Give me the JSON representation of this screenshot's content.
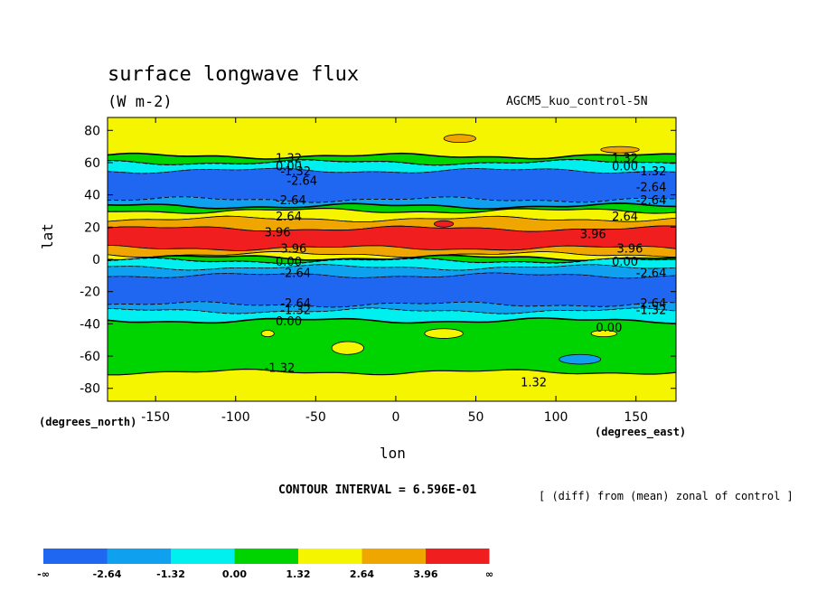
{
  "chart_data": {
    "type": "heatmap",
    "title": "surface longwave flux",
    "units": "(W m-2)",
    "run_name": "AGCM5_kuo_control-5N",
    "xlabel": "lon",
    "ylabel": "lat",
    "x_units_label": "(degrees_east)",
    "y_units_label": "(degrees_north)",
    "xlim": [
      -180,
      175
    ],
    "ylim": [
      -88,
      88
    ],
    "x_ticks": [
      -150,
      -100,
      -50,
      0,
      50,
      100,
      150
    ],
    "y_ticks": [
      -80,
      -60,
      -40,
      -20,
      0,
      20,
      40,
      60,
      80
    ],
    "x_tick_labels": [
      "-150",
      "-100",
      "-50",
      "0",
      "50",
      "100",
      "150"
    ],
    "y_tick_labels": [
      "-80",
      "-60",
      "-40",
      "-20",
      "0",
      "20",
      "40",
      "60",
      "80"
    ],
    "contour_interval_text": "CONTOUR INTERVAL = 6.596E-01",
    "description_text": "[ (diff) from (mean) zonal of control ]",
    "colorbar": {
      "labels": [
        "-∞",
        "-2.64",
        "-1.32",
        "0.00",
        "1.32",
        "2.64",
        "3.96",
        "∞"
      ],
      "colors": [
        "#1f66f0",
        "#10a0f0",
        "#00f0f0",
        "#00d400",
        "#f5f500",
        "#f0a600",
        "#f01e1e"
      ]
    },
    "zonal_bands": [
      {
        "lat_from": 88,
        "lat_to": 64,
        "value": 1.32,
        "color": "#f5f500"
      },
      {
        "lat_from": 64,
        "lat_to": 60,
        "value": 0.0,
        "color": "#00d400"
      },
      {
        "lat_from": 60,
        "lat_to": 55,
        "value": -1.32,
        "color": "#00f0f0"
      },
      {
        "lat_from": 55,
        "lat_to": 37,
        "value": -2.64,
        "color": "#1f66f0"
      },
      {
        "lat_from": 37,
        "lat_to": 33,
        "value": -1.32,
        "color": "#10a0f0"
      },
      {
        "lat_from": 33,
        "lat_to": 30,
        "value": 0.0,
        "color": "#00d400"
      },
      {
        "lat_from": 30,
        "lat_to": 25,
        "value": 1.32,
        "color": "#f5f500"
      },
      {
        "lat_from": 25,
        "lat_to": 19,
        "value": 2.64,
        "color": "#f0a600"
      },
      {
        "lat_from": 19,
        "lat_to": 7,
        "value": 3.96,
        "color": "#f01e1e"
      },
      {
        "lat_from": 7,
        "lat_to": 3,
        "value": 2.64,
        "color": "#f0a600"
      },
      {
        "lat_from": 3,
        "lat_to": 1,
        "value": 1.32,
        "color": "#f5f500"
      },
      {
        "lat_from": 1,
        "lat_to": -1,
        "value": 0.0,
        "color": "#00d400"
      },
      {
        "lat_from": -1,
        "lat_to": -5,
        "value": -1.32,
        "color": "#00f0f0"
      },
      {
        "lat_from": -5,
        "lat_to": -10,
        "value": -1.32,
        "color": "#10a0f0"
      },
      {
        "lat_from": -10,
        "lat_to": -28,
        "value": -2.64,
        "color": "#1f66f0"
      },
      {
        "lat_from": -28,
        "lat_to": -32,
        "value": -1.32,
        "color": "#10a0f0"
      },
      {
        "lat_from": -32,
        "lat_to": -38,
        "value": -1.32,
        "color": "#00f0f0"
      },
      {
        "lat_from": -38,
        "lat_to": -70,
        "value": 0.0,
        "color": "#00d400"
      },
      {
        "lat_from": -70,
        "lat_to": -88,
        "value": 1.32,
        "color": "#f5f500"
      }
    ],
    "patches": [
      {
        "lon": -80,
        "lat": -46,
        "rx": 4,
        "ry": 2,
        "color": "#f5f500"
      },
      {
        "lon": -30,
        "lat": -55,
        "rx": 10,
        "ry": 4,
        "color": "#f5f500"
      },
      {
        "lon": 30,
        "lat": -46,
        "rx": 12,
        "ry": 3,
        "color": "#f5f500"
      },
      {
        "lon": 130,
        "lat": -46,
        "rx": 8,
        "ry": 2,
        "color": "#f5f500"
      },
      {
        "lon": 115,
        "lat": -62,
        "rx": 13,
        "ry": 3,
        "color": "#10a0f0"
      },
      {
        "lon": 140,
        "lat": 68,
        "rx": 12,
        "ry": 2,
        "color": "#f0a600"
      },
      {
        "lon": 40,
        "lat": 75,
        "rx": 10,
        "ry": 2.5,
        "color": "#f0a600"
      },
      {
        "lon": 30,
        "lat": 22,
        "rx": 6,
        "ry": 2,
        "color": "#f01e1e"
      }
    ],
    "contour_labels": [
      {
        "text": "1.32",
        "lon": -75,
        "lat": 63
      },
      {
        "text": "0.00",
        "lon": -75,
        "lat": 58
      },
      {
        "text": "-1.32",
        "lon": -72,
        "lat": 55
      },
      {
        "text": "-2.64",
        "lon": -68,
        "lat": 49
      },
      {
        "text": "-2.64",
        "lon": -75,
        "lat": 37
      },
      {
        "text": "2.64",
        "lon": -75,
        "lat": 27
      },
      {
        "text": "3.96",
        "lon": -82,
        "lat": 17
      },
      {
        "text": "3.96",
        "lon": -72,
        "lat": 7
      },
      {
        "text": "0.00",
        "lon": -75,
        "lat": -1
      },
      {
        "text": "-2.64",
        "lon": -72,
        "lat": -8
      },
      {
        "text": "-2.64",
        "lon": -72,
        "lat": -27
      },
      {
        "text": "-1.32",
        "lon": -72,
        "lat": -31
      },
      {
        "text": "0.00",
        "lon": -75,
        "lat": -38
      },
      {
        "text": "-1.32",
        "lon": -82,
        "lat": -67
      },
      {
        "text": "1.32",
        "lon": 135,
        "lat": 63
      },
      {
        "text": "0.00",
        "lon": 135,
        "lat": 58
      },
      {
        "text": "-1.32",
        "lon": 150,
        "lat": 55
      },
      {
        "text": "-2.64",
        "lon": 150,
        "lat": 45
      },
      {
        "text": "-2.64",
        "lon": 150,
        "lat": 37
      },
      {
        "text": "2.64",
        "lon": 135,
        "lat": 27
      },
      {
        "text": "3.96",
        "lon": 115,
        "lat": 16
      },
      {
        "text": "3.96",
        "lon": 138,
        "lat": 7
      },
      {
        "text": "0.00",
        "lon": 135,
        "lat": -1
      },
      {
        "text": "-2.64",
        "lon": 150,
        "lat": -8
      },
      {
        "text": "-2.64",
        "lon": 150,
        "lat": -27
      },
      {
        "text": "-1.32",
        "lon": 150,
        "lat": -31
      },
      {
        "text": "0.00",
        "lon": 125,
        "lat": -42
      },
      {
        "text": "1.32",
        "lon": 78,
        "lat": -76
      }
    ]
  }
}
